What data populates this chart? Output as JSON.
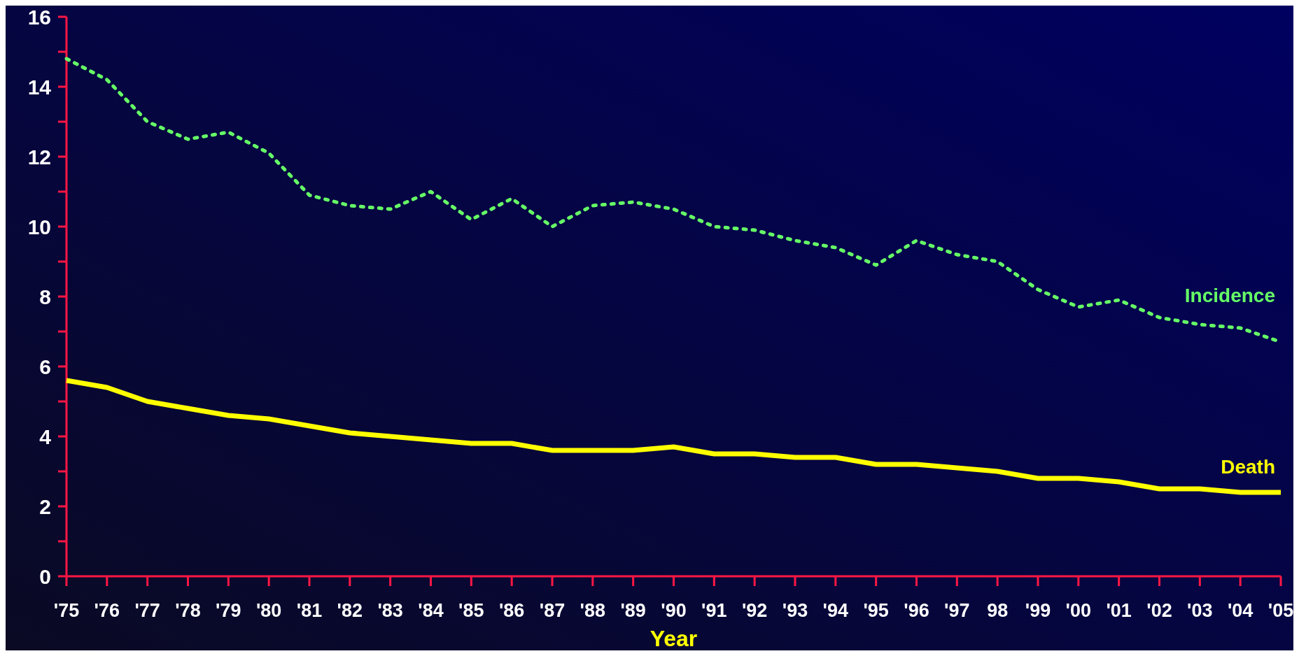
{
  "chart_data": {
    "type": "line",
    "xlabel": "Year",
    "categories": [
      "'75",
      "'76",
      "'77",
      "'78",
      "'79",
      "'80",
      "'81",
      "'82",
      "'83",
      "'84",
      "'85",
      "'86",
      "'87",
      "'88",
      "'89",
      "'90",
      "'91",
      "'92",
      "'93",
      "'94",
      "'95",
      "'96",
      "'97",
      "98",
      "'99",
      "'00",
      "'01",
      "'02",
      "'03",
      "'04",
      "'05"
    ],
    "series": [
      {
        "name": "Incidence",
        "color": "#66ff66",
        "line_style": "dotted",
        "values": [
          14.8,
          14.2,
          13.0,
          12.5,
          12.7,
          12.1,
          10.9,
          10.6,
          10.5,
          11.0,
          10.2,
          10.8,
          10.0,
          10.6,
          10.7,
          10.5,
          10.0,
          9.9,
          9.6,
          9.4,
          8.9,
          9.6,
          9.2,
          9.0,
          8.2,
          7.7,
          7.9,
          7.4,
          7.2,
          7.1,
          6.7
        ]
      },
      {
        "name": "Death",
        "color": "#ffff00",
        "line_style": "solid",
        "values": [
          5.6,
          5.4,
          5.0,
          4.8,
          4.6,
          4.5,
          4.3,
          4.1,
          4.0,
          3.9,
          3.8,
          3.8,
          3.6,
          3.6,
          3.6,
          3.7,
          3.5,
          3.5,
          3.4,
          3.4,
          3.2,
          3.2,
          3.1,
          3.0,
          2.8,
          2.8,
          2.7,
          2.5,
          2.5,
          2.4,
          2.4
        ]
      }
    ],
    "ylim": [
      0,
      16
    ],
    "yticks": [
      0,
      {
        "value": 1,
        "label": null
      },
      2,
      {
        "value": 3,
        "label": null
      },
      4,
      {
        "value": 5,
        "label": null
      },
      6,
      {
        "value": 7,
        "label": null
      },
      8,
      {
        "value": 9,
        "label": null
      },
      10,
      {
        "value": 11,
        "label": null
      },
      12,
      {
        "value": 13,
        "label": null
      },
      14,
      {
        "value": 15,
        "label": null
      },
      16
    ],
    "grid": false,
    "legend": false,
    "marker": "none"
  }
}
